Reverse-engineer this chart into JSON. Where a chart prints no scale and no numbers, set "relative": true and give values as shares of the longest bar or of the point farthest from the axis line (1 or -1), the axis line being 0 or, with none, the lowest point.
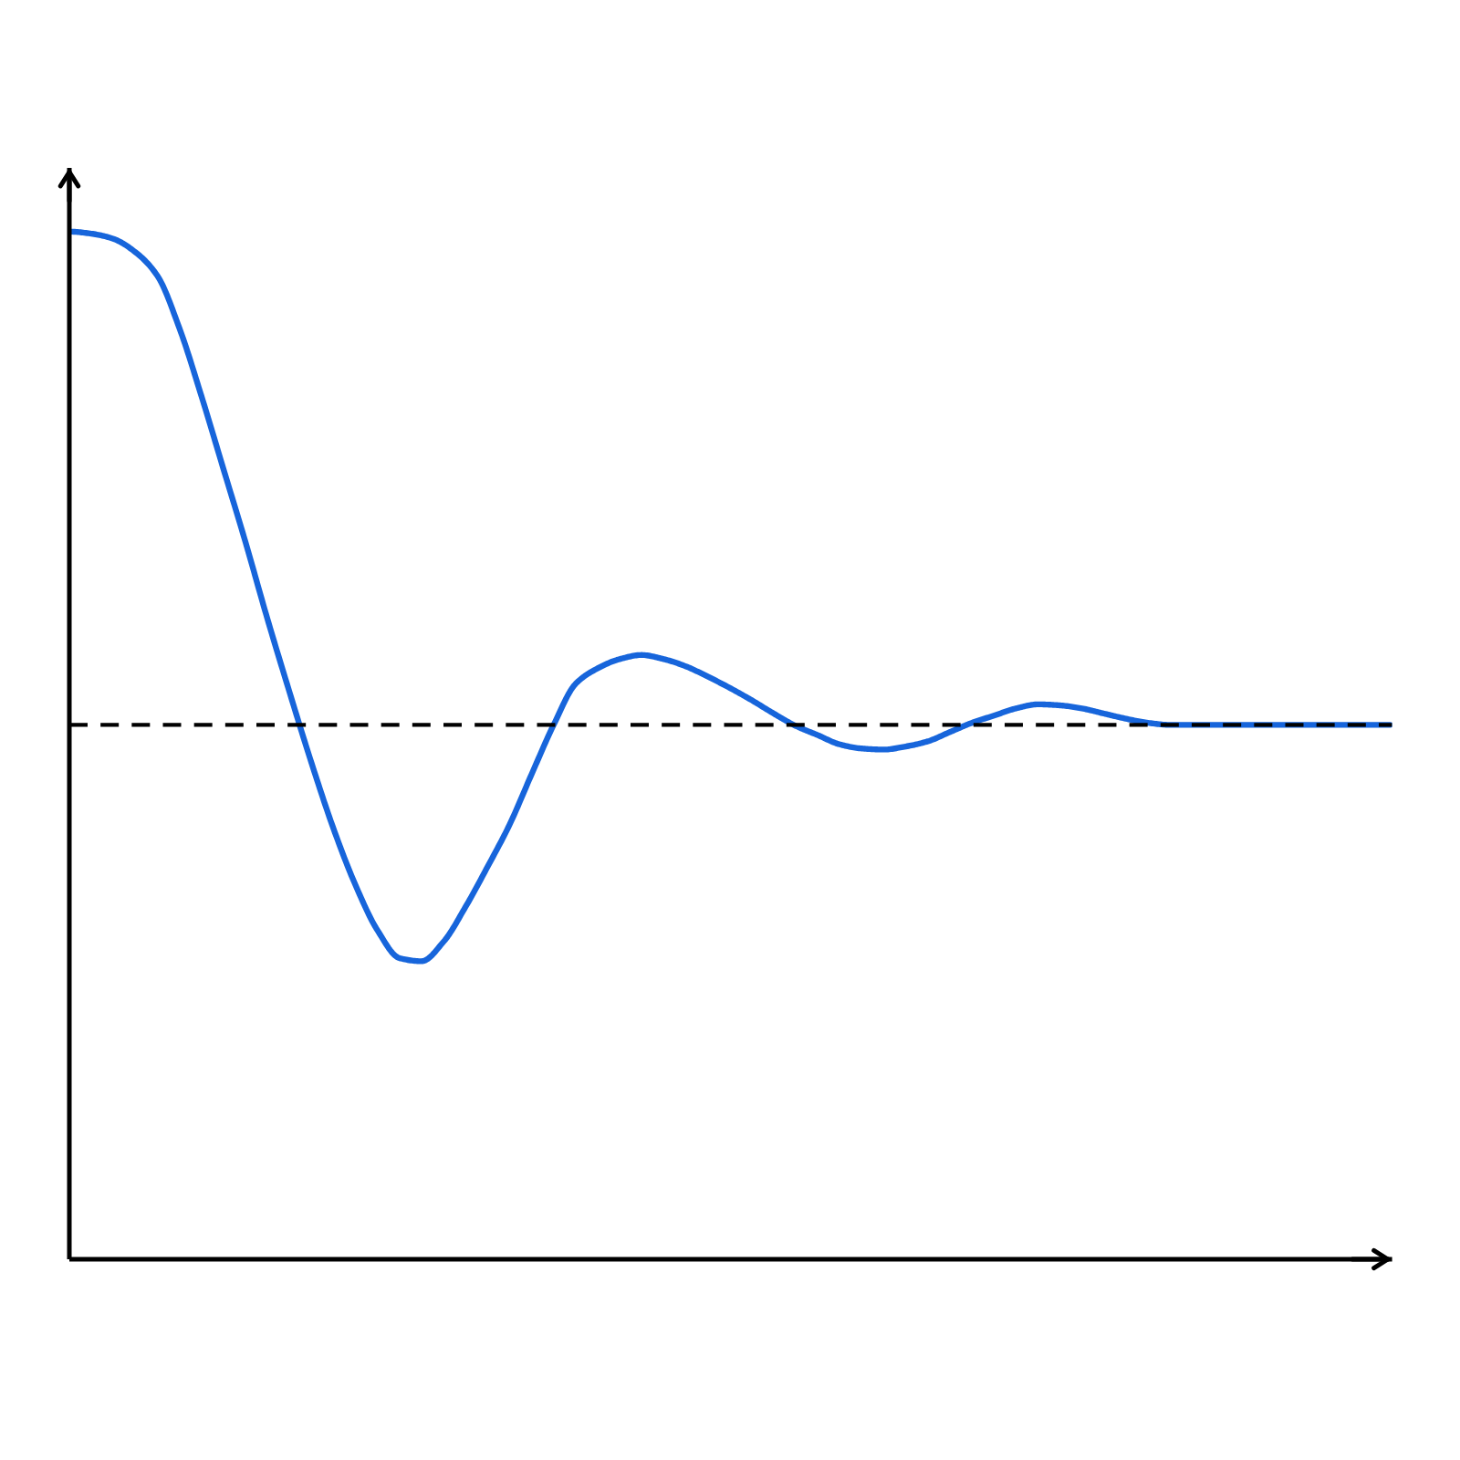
{
  "chart_data": {
    "type": "line",
    "relative": true,
    "line_style": "solid",
    "color": "#1765db",
    "categories": [
      null,
      null,
      null,
      null,
      null,
      null,
      null,
      null,
      null,
      null,
      null,
      null,
      null,
      null,
      null,
      null,
      null,
      null,
      null,
      null,
      null,
      null,
      null,
      null,
      null,
      null,
      null,
      null,
      null,
      null,
      null,
      null,
      null,
      null,
      null,
      null,
      null,
      null,
      null,
      null,
      null,
      null,
      null,
      null,
      null,
      null,
      null,
      null,
      null,
      null,
      null,
      null,
      null,
      null,
      null,
      null,
      null,
      null,
      null,
      null,
      null
    ],
    "values": [
      1.0,
      0.998,
      0.993,
      0.98,
      0.957,
      0.906,
      0.84,
      0.769,
      0.698,
      0.623,
      0.552,
      0.483,
      0.419,
      0.364,
      0.32,
      0.293,
      0.29,
      0.309,
      0.343,
      0.382,
      0.423,
      0.472,
      0.52,
      0.56,
      0.575,
      0.584,
      0.588,
      0.584,
      0.577,
      0.567,
      0.556,
      0.544,
      0.531,
      0.519,
      0.51,
      0.501,
      0.497,
      0.496,
      0.499,
      0.504,
      0.513,
      0.522,
      0.529,
      0.536,
      0.54,
      0.539,
      0.536,
      0.531,
      0.526,
      0.522,
      0.52,
      0.52,
      0.52,
      0.52,
      0.52,
      0.52,
      0.52,
      0.52,
      0.52,
      0.52,
      0.52
    ],
    "ref_lines": [
      {
        "axis": "y",
        "value": 0.52,
        "color": "#000000",
        "line_style": "dashed"
      }
    ]
  }
}
